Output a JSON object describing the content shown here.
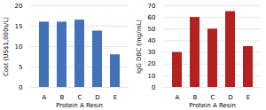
{
  "chart_data": [
    {
      "type": "bar",
      "categories": [
        "A",
        "B",
        "C",
        "D",
        "E"
      ],
      "values": [
        16.0,
        16.0,
        16.5,
        13.8,
        8.0
      ],
      "color": "#4472b8",
      "xlabel": "Protein A Resin",
      "ylabel": "Cost (US$1,000s/L)",
      "ylim": [
        0,
        20
      ],
      "yticks": [
        0,
        5,
        10,
        15,
        20
      ],
      "grid": true
    },
    {
      "type": "bar",
      "categories": [
        "A",
        "B",
        "C",
        "D",
        "E"
      ],
      "values": [
        30,
        60,
        50,
        65,
        35
      ],
      "color": "#b52020",
      "xlabel": "Protein A Resin",
      "ylabel": "IgG DBC (mg/mL)",
      "ylim": [
        0,
        70
      ],
      "yticks": [
        0,
        10,
        20,
        30,
        40,
        50,
        60,
        70
      ],
      "grid": true
    }
  ]
}
